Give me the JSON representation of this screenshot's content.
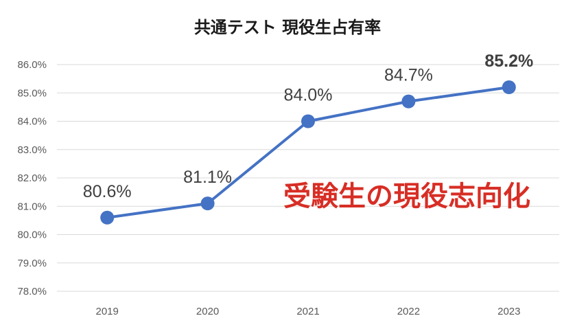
{
  "chart_data": {
    "type": "line",
    "title": "共通テスト 現役生占有率",
    "xlabel": "",
    "ylabel": "",
    "categories": [
      "2019",
      "2020",
      "2021",
      "2022",
      "2023"
    ],
    "series": [
      {
        "values": [
          80.6,
          81.1,
          84.0,
          84.7,
          85.2
        ],
        "data_labels": [
          "80.6%",
          "81.1%",
          "84.0%",
          "84.7%",
          "85.2%"
        ],
        "color": "#4472c4"
      }
    ],
    "ylim": [
      78.0,
      86.0
    ],
    "ytick_labels": [
      "78.0%",
      "79.0%",
      "80.0%",
      "81.0%",
      "82.0%",
      "83.0%",
      "84.0%",
      "85.0%",
      "86.0%"
    ],
    "grid": true,
    "legend": "none",
    "highlight_index": 4,
    "highlight_color": "#e53323",
    "annotation": {
      "text": "受験生の現役志向化",
      "color": "#d72e25"
    }
  }
}
